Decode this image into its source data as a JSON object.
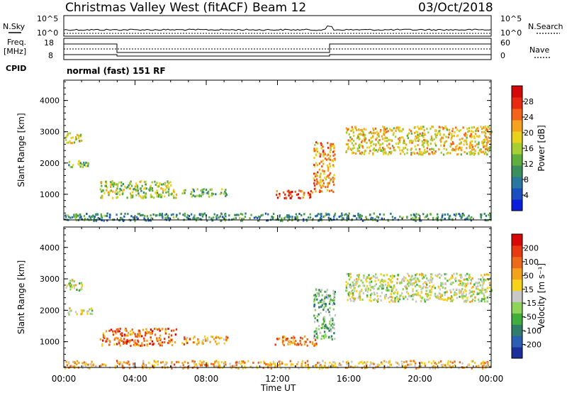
{
  "header": {
    "station": "Christmas Valley West (fitACF)",
    "beam": "Beam 12",
    "date": "03/Oct/2018"
  },
  "param_panel": {
    "nsky_label": "N.Sky",
    "nsky_ticks": [
      "10^5",
      "10^0"
    ],
    "nsearch_label": "N.Search",
    "nsearch_ticks": [
      "10^5",
      "10^0"
    ],
    "freq_label_1": "Freq.",
    "freq_label_2": "[MHz]",
    "freq_ticks": [
      "18",
      "8"
    ],
    "nave_label": "Nave",
    "nave_ticks": [
      "60",
      "0"
    ],
    "cpid_label": "CPID",
    "cpid_value": "normal (fast) 151 RF"
  },
  "chart_data": [
    {
      "type": "heatmap",
      "name": "power",
      "ylabel": "Slant Range [km]",
      "ylim": [
        180,
        4650
      ],
      "yticks": [
        "4000",
        "3000",
        "2000",
        "1000"
      ],
      "xlim_hours": [
        0,
        24
      ],
      "colorbar_label": "Power [dB]",
      "colorbar_ticks": [
        "28",
        "24",
        "20",
        "16",
        "12",
        "8",
        "4"
      ],
      "colorbar_colors": [
        "#0a1edc",
        "#1a4fc2",
        "#2a78a0",
        "#3b8f5c",
        "#5fae3e",
        "#a7cf33",
        "#e8d21d",
        "#f6a21e",
        "#f2641a",
        "#e82a12",
        "#d40808"
      ],
      "regions": [
        {
          "t0": 0.05,
          "t1": 1.0,
          "r0": 2650,
          "r1": 3000,
          "level": 0.55
        },
        {
          "t0": 0.2,
          "t1": 1.6,
          "r0": 1900,
          "r1": 2100,
          "level": 0.4
        },
        {
          "t0": 2.0,
          "t1": 6.3,
          "r0": 900,
          "r1": 1450,
          "level": 0.5
        },
        {
          "t0": 6.6,
          "t1": 9.2,
          "r0": 950,
          "r1": 1200,
          "level": 0.4
        },
        {
          "t0": 11.8,
          "t1": 14.0,
          "r0": 900,
          "r1": 1150,
          "level": 0.85
        },
        {
          "t0": 14.0,
          "t1": 15.2,
          "r0": 1100,
          "r1": 2700,
          "level": 0.7
        },
        {
          "t0": 15.8,
          "t1": 24.0,
          "r0": 2300,
          "r1": 3200,
          "level": 0.6
        },
        {
          "t0": 0.0,
          "t1": 24.0,
          "r0": 180,
          "r1": 420,
          "level": 0.3
        }
      ]
    },
    {
      "type": "heatmap",
      "name": "velocity",
      "ylabel": "Slant Range [km]",
      "ylim": [
        180,
        4650
      ],
      "yticks": [
        "4000",
        "3000",
        "2000",
        "1000"
      ],
      "xlim_hours": [
        0,
        24
      ],
      "xticks": [
        "00:00",
        "04:00",
        "08:00",
        "12:00",
        "16:00",
        "20:00",
        "00:00"
      ],
      "xlabel": "Time UT",
      "colorbar_label": "Velocity [m s⁻¹]",
      "colorbar_ticks": [
        "200",
        "100",
        "50",
        "15",
        "-15",
        "-50",
        "-100",
        "-200"
      ],
      "colorbar_colors": [
        "#1b2f9c",
        "#2b5fb5",
        "#2f7d6a",
        "#3fae3b",
        "#8fd45a",
        "#c8c8c8",
        "#f7d21a",
        "#f3a21c",
        "#ee6a1a",
        "#e83a12",
        "#d80808"
      ],
      "regions": [
        {
          "t0": 0.05,
          "t1": 1.0,
          "r0": 2650,
          "r1": 3000,
          "level": 0.5
        },
        {
          "t0": 0.2,
          "t1": 1.6,
          "r0": 1900,
          "r1": 2100,
          "level": 0.5
        },
        {
          "t0": 2.0,
          "t1": 6.3,
          "r0": 900,
          "r1": 1450,
          "level": 0.78
        },
        {
          "t0": 6.6,
          "t1": 9.2,
          "r0": 950,
          "r1": 1200,
          "level": 0.7
        },
        {
          "t0": 11.8,
          "t1": 14.2,
          "r0": 900,
          "r1": 1200,
          "level": 0.75
        },
        {
          "t0": 14.0,
          "t1": 15.2,
          "r0": 1100,
          "r1": 2700,
          "level": 0.35
        },
        {
          "t0": 15.8,
          "t1": 24.0,
          "r0": 2300,
          "r1": 3200,
          "level": 0.5
        },
        {
          "t0": 0.0,
          "t1": 24.0,
          "r0": 180,
          "r1": 420,
          "level": 0.65
        }
      ]
    }
  ]
}
